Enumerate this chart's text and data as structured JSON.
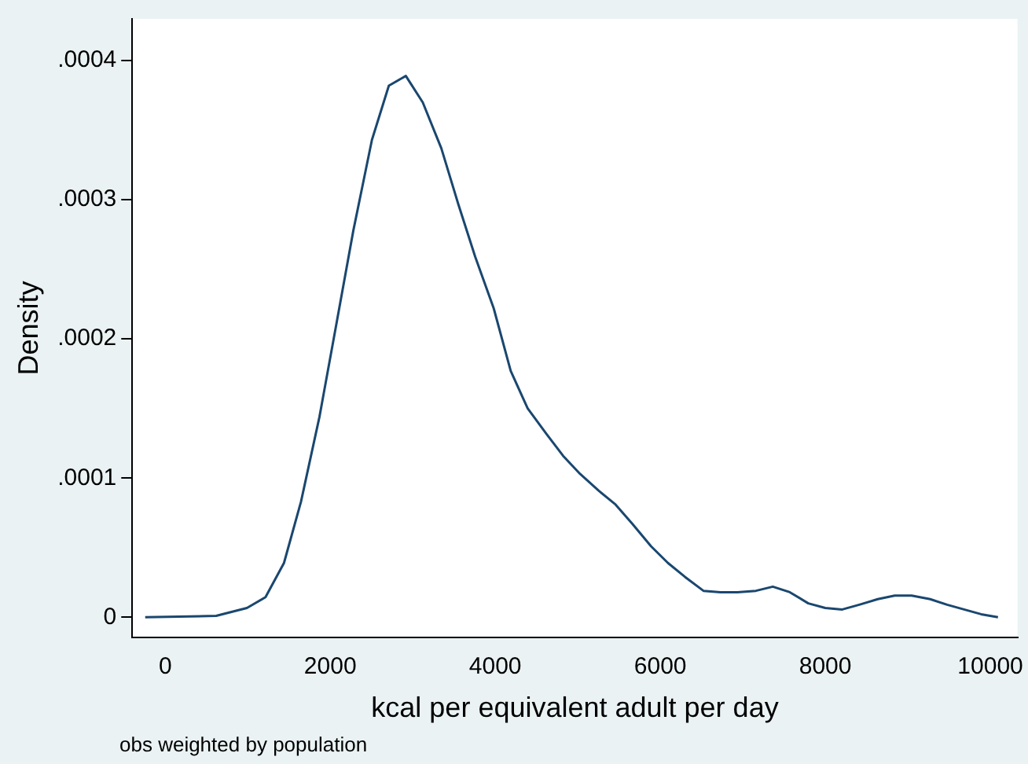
{
  "chart_data": {
    "type": "line",
    "xlabel": "kcal per equivalent adult per day",
    "ylabel": "Density",
    "annotations": [
      "obs weighted by population"
    ],
    "x": [
      -243,
      617,
      990,
      1215,
      1439,
      1645,
      1869,
      2075,
      2280,
      2505,
      2710,
      2916,
      3121,
      3346,
      3551,
      3757,
      3981,
      4187,
      4393,
      4617,
      4822,
      5028,
      5252,
      5458,
      5664,
      5888,
      6093,
      6299,
      6523,
      6729,
      6935,
      7159,
      7364,
      7570,
      7794,
      8000,
      8206,
      8411,
      8636,
      8841,
      9047,
      9271,
      9477,
      9682,
      9888,
      10093
    ],
    "series": [
      {
        "color": "#1a476f",
        "values": [
          0,
          1e-06,
          6.7e-06,
          1.44e-05,
          3.9e-05,
          8.3e-05,
          0.000144,
          0.000211,
          0.000278,
          0.000343,
          0.000382,
          0.000389,
          0.00037,
          0.000337,
          0.000297,
          0.000259,
          0.000222,
          0.000177,
          0.00015,
          0.000132,
          0.000116,
          0.000103,
          9.1e-05,
          8.1e-05,
          6.7e-05,
          5.1e-05,
          3.9e-05,
          2.9e-05,
          1.9e-05,
          1.8e-05,
          1.8e-05,
          1.9e-05,
          2.2e-05,
          1.8e-05,
          1e-05,
          6.7e-06,
          5.6e-06,
          9e-06,
          1.3e-05,
          1.56e-05,
          1.56e-05,
          1.3e-05,
          9e-06,
          5.6e-06,
          2.2e-06,
          0
        ]
      }
    ],
    "xlim": [
      -400,
      10330
    ],
    "ylim": [
      -1.44e-05,
      0.00043
    ],
    "xticks": [
      0,
      2000,
      4000,
      6000,
      8000,
      10000
    ],
    "yticks": [
      0,
      {
        "value": 0.0001,
        "label": ".0001"
      },
      {
        "value": 0.0002,
        "label": ".0002"
      },
      {
        "value": 0.0003,
        "label": ".0003"
      },
      {
        "value": 0.0004,
        "label": ".0004"
      }
    ],
    "grid": false,
    "legend": false,
    "marker": "none",
    "line_style": "solid"
  }
}
